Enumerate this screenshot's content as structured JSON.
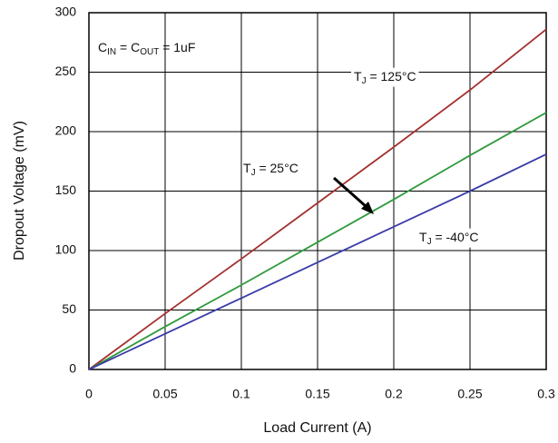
{
  "chart_data": {
    "type": "line",
    "xlabel": "Load Current (A)",
    "ylabel": "Dropout Voltage  (mV)",
    "x": [
      0,
      0.05,
      0.1,
      0.15,
      0.2,
      0.25,
      0.3
    ],
    "series": [
      {
        "label": [
          {
            "text": "T"
          },
          {
            "text": "J",
            "sub": true
          },
          {
            "text": " = 125°C"
          }
        ],
        "color": "#a3302e",
        "values": [
          0,
          47,
          93,
          140,
          187,
          235,
          286
        ]
      },
      {
        "label": [
          {
            "text": "T"
          },
          {
            "text": "J",
            "sub": true
          },
          {
            "text": " = 25°C"
          }
        ],
        "color": "#2f9a3c",
        "values": [
          0,
          36,
          71,
          107,
          143,
          180,
          216
        ]
      },
      {
        "label": [
          {
            "text": "T"
          },
          {
            "text": "J",
            "sub": true
          },
          {
            "text": " = -40°C"
          }
        ],
        "color": "#3b3ba8",
        "values": [
          0,
          30,
          60,
          90,
          120,
          150,
          181
        ]
      }
    ],
    "annotation": [
      {
        "text": "C"
      },
      {
        "text": "IN",
        "sub": true
      },
      {
        "text": " = C"
      },
      {
        "text": "OUT",
        "sub": true
      },
      {
        "text": " = 1uF"
      }
    ],
    "xlim": [
      0,
      0.3
    ],
    "xticks": [
      0,
      0.05,
      0.1,
      0.15,
      0.2,
      0.25,
      0.3
    ],
    "ylim": [
      0,
      300
    ],
    "yticks": [
      0,
      50,
      100,
      150,
      200,
      250,
      300
    ],
    "grid": true
  }
}
